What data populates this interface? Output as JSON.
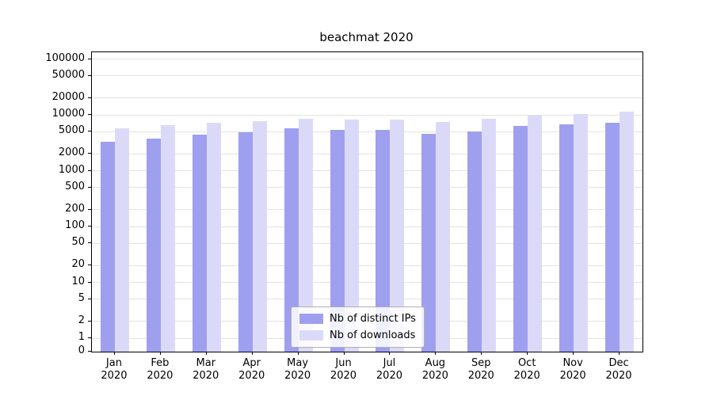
{
  "chart_data": {
    "type": "bar",
    "title": "beachmat 2020",
    "scale": "symlog",
    "grid": true,
    "legend_position": "lower center",
    "categories": [
      "Jan",
      "Feb",
      "Mar",
      "Apr",
      "May",
      "Jun",
      "Jul",
      "Aug",
      "Sep",
      "Oct",
      "Nov",
      "Dec"
    ],
    "category_sublabel": "2020",
    "yticks": [
      0,
      1,
      2,
      5,
      10,
      20,
      50,
      100,
      200,
      500,
      1000,
      2000,
      5000,
      10000,
      20000,
      50000,
      100000
    ],
    "ylim": [
      0,
      100000
    ],
    "series": [
      {
        "name": "Nb of distinct IPs",
        "color": "#9f9ff0",
        "values": [
          3300,
          3700,
          4400,
          4900,
          5800,
          5300,
          5300,
          4600,
          5100,
          6300,
          6700,
          7300
        ]
      },
      {
        "name": "Nb of downloads",
        "color": "#dadaf8",
        "values": [
          5700,
          6600,
          7300,
          7800,
          8500,
          8300,
          8200,
          7400,
          8500,
          9800,
          10500,
          11500
        ]
      }
    ],
    "colors": {
      "gridline": "#e3e3e3",
      "axis": "#000000",
      "background": "#ffffff"
    }
  }
}
